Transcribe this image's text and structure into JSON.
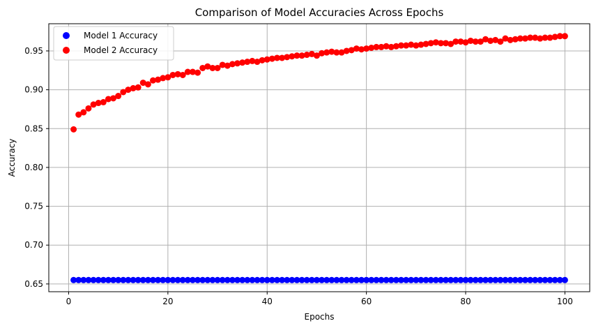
{
  "chart_data": {
    "type": "scatter",
    "title": "Comparison of Model Accuracies Across Epochs",
    "xlabel": "Epochs",
    "ylabel": "Accuracy",
    "xlim": [
      -4,
      105
    ],
    "ylim": [
      0.64,
      0.985
    ],
    "x_ticks": [
      0,
      20,
      40,
      60,
      80,
      100
    ],
    "y_ticks": [
      0.65,
      0.7,
      0.75,
      0.8,
      0.85,
      0.9,
      0.95
    ],
    "y_tick_labels": [
      "0.65",
      "0.70",
      "0.75",
      "0.80",
      "0.85",
      "0.90",
      "0.95"
    ],
    "grid": true,
    "legend_position": "upper-left",
    "series": [
      {
        "name": "Model 1 Accuracy",
        "color": "#0000ff",
        "x": [
          1,
          2,
          3,
          4,
          5,
          6,
          7,
          8,
          9,
          10,
          11,
          12,
          13,
          14,
          15,
          16,
          17,
          18,
          19,
          20,
          21,
          22,
          23,
          24,
          25,
          26,
          27,
          28,
          29,
          30,
          31,
          32,
          33,
          34,
          35,
          36,
          37,
          38,
          39,
          40,
          41,
          42,
          43,
          44,
          45,
          46,
          47,
          48,
          49,
          50,
          51,
          52,
          53,
          54,
          55,
          56,
          57,
          58,
          59,
          60,
          61,
          62,
          63,
          64,
          65,
          66,
          67,
          68,
          69,
          70,
          71,
          72,
          73,
          74,
          75,
          76,
          77,
          78,
          79,
          80,
          81,
          82,
          83,
          84,
          85,
          86,
          87,
          88,
          89,
          90,
          91,
          92,
          93,
          94,
          95,
          96,
          97,
          98,
          99,
          100
        ],
        "y": [
          0.655,
          0.655,
          0.655,
          0.655,
          0.655,
          0.655,
          0.655,
          0.655,
          0.655,
          0.655,
          0.655,
          0.655,
          0.655,
          0.655,
          0.655,
          0.655,
          0.655,
          0.655,
          0.655,
          0.655,
          0.655,
          0.655,
          0.655,
          0.655,
          0.655,
          0.655,
          0.655,
          0.655,
          0.655,
          0.655,
          0.655,
          0.655,
          0.655,
          0.655,
          0.655,
          0.655,
          0.655,
          0.655,
          0.655,
          0.655,
          0.655,
          0.655,
          0.655,
          0.655,
          0.655,
          0.655,
          0.655,
          0.655,
          0.655,
          0.655,
          0.655,
          0.655,
          0.655,
          0.655,
          0.655,
          0.655,
          0.655,
          0.655,
          0.655,
          0.655,
          0.655,
          0.655,
          0.655,
          0.655,
          0.655,
          0.655,
          0.655,
          0.655,
          0.655,
          0.655,
          0.655,
          0.655,
          0.655,
          0.655,
          0.655,
          0.655,
          0.655,
          0.655,
          0.655,
          0.655,
          0.655,
          0.655,
          0.655,
          0.655,
          0.655,
          0.655,
          0.655,
          0.655,
          0.655,
          0.655,
          0.655,
          0.655,
          0.655,
          0.655,
          0.655,
          0.655,
          0.655,
          0.655,
          0.655,
          0.655
        ]
      },
      {
        "name": "Model 2 Accuracy",
        "color": "#ff0000",
        "x": [
          1,
          2,
          3,
          4,
          5,
          6,
          7,
          8,
          9,
          10,
          11,
          12,
          13,
          14,
          15,
          16,
          17,
          18,
          19,
          20,
          21,
          22,
          23,
          24,
          25,
          26,
          27,
          28,
          29,
          30,
          31,
          32,
          33,
          34,
          35,
          36,
          37,
          38,
          39,
          40,
          41,
          42,
          43,
          44,
          45,
          46,
          47,
          48,
          49,
          50,
          51,
          52,
          53,
          54,
          55,
          56,
          57,
          58,
          59,
          60,
          61,
          62,
          63,
          64,
          65,
          66,
          67,
          68,
          69,
          70,
          71,
          72,
          73,
          74,
          75,
          76,
          77,
          78,
          79,
          80,
          81,
          82,
          83,
          84,
          85,
          86,
          87,
          88,
          89,
          90,
          91,
          92,
          93,
          94,
          95,
          96,
          97,
          98,
          99,
          100
        ],
        "y": [
          0.849,
          0.868,
          0.871,
          0.876,
          0.881,
          0.883,
          0.884,
          0.888,
          0.889,
          0.892,
          0.897,
          0.9,
          0.902,
          0.903,
          0.909,
          0.907,
          0.912,
          0.913,
          0.915,
          0.916,
          0.919,
          0.92,
          0.919,
          0.923,
          0.923,
          0.922,
          0.928,
          0.93,
          0.928,
          0.928,
          0.932,
          0.931,
          0.933,
          0.934,
          0.935,
          0.936,
          0.937,
          0.936,
          0.938,
          0.939,
          0.94,
          0.941,
          0.941,
          0.942,
          0.943,
          0.944,
          0.944,
          0.945,
          0.946,
          0.944,
          0.947,
          0.948,
          0.949,
          0.948,
          0.948,
          0.95,
          0.951,
          0.953,
          0.952,
          0.953,
          0.954,
          0.955,
          0.955,
          0.956,
          0.955,
          0.956,
          0.957,
          0.957,
          0.958,
          0.957,
          0.958,
          0.959,
          0.96,
          0.961,
          0.96,
          0.96,
          0.959,
          0.962,
          0.962,
          0.961,
          0.963,
          0.962,
          0.962,
          0.965,
          0.963,
          0.964,
          0.962,
          0.966,
          0.964,
          0.965,
          0.966,
          0.966,
          0.967,
          0.967,
          0.966,
          0.967,
          0.967,
          0.968,
          0.969,
          0.969
        ]
      }
    ]
  }
}
